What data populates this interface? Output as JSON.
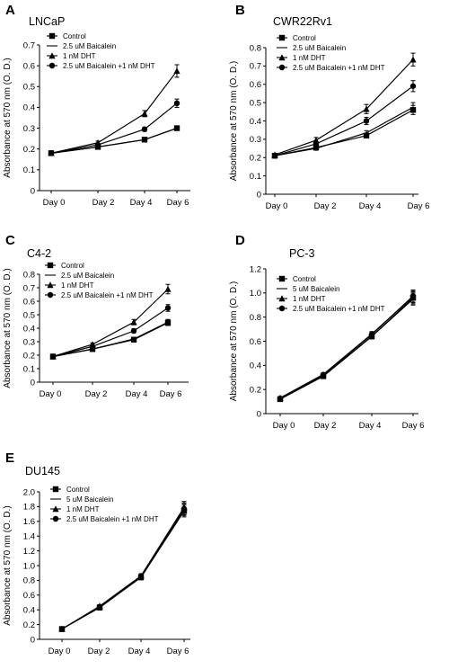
{
  "chart_data": [
    {
      "type": "line",
      "panel": "A",
      "title": "LNCaP",
      "ylabel": "Absorbance at 570 nm (O. D.)",
      "categories": [
        "Day 0",
        "Day 2",
        "Day 4",
        "Day 6"
      ],
      "ylim": [
        0,
        0.7
      ],
      "ytick_step": 0.1,
      "ytick_decimals": 1,
      "grid": false,
      "legend_position": "top-left",
      "series": [
        {
          "name": "Control",
          "marker": "square",
          "values": [
            0.18,
            0.21,
            0.245,
            0.3
          ],
          "errors": [
            0.005,
            0.005,
            0.006,
            0.01
          ]
        },
        {
          "name": "2.5 uM Baicalein",
          "marker": "none",
          "values": [
            0.18,
            0.21,
            0.245,
            0.3
          ],
          "errors": [
            0.005,
            0.005,
            0.006,
            0.01
          ]
        },
        {
          "name": "1 nM DHT",
          "marker": "triangle",
          "values": [
            0.18,
            0.23,
            0.37,
            0.575
          ],
          "errors": [
            0.005,
            0.008,
            0.015,
            0.03
          ]
        },
        {
          "name": "2.5 uM Baicalein +1 nM DHT",
          "marker": "circle",
          "values": [
            0.18,
            0.22,
            0.295,
            0.42
          ],
          "errors": [
            0.005,
            0.007,
            0.01,
            0.02
          ]
        }
      ]
    },
    {
      "type": "line",
      "panel": "B",
      "title": "CWR22Rv1",
      "ylabel": "Absorbance at 570 nm (O. D.)",
      "categories": [
        "Day 0",
        "Day 2",
        "Day 4",
        "Day 6"
      ],
      "ylim": [
        0,
        0.8
      ],
      "ytick_step": 0.1,
      "ytick_decimals": 1,
      "grid": false,
      "legend_position": "top-left",
      "series": [
        {
          "name": "Control",
          "marker": "square",
          "values": [
            0.21,
            0.255,
            0.32,
            0.46
          ],
          "errors": [
            0.008,
            0.01,
            0.012,
            0.025
          ]
        },
        {
          "name": "2.5 uM Baicalein",
          "marker": "none",
          "values": [
            0.21,
            0.25,
            0.335,
            0.475
          ],
          "errors": [
            0.008,
            0.01,
            0.012,
            0.025
          ]
        },
        {
          "name": "1 nM DHT",
          "marker": "triangle",
          "values": [
            0.215,
            0.295,
            0.465,
            0.735
          ],
          "errors": [
            0.008,
            0.015,
            0.025,
            0.035
          ]
        },
        {
          "name": "2.5 uM Baicalein +1 nM DHT",
          "marker": "circle",
          "values": [
            0.21,
            0.275,
            0.4,
            0.59
          ],
          "errors": [
            0.008,
            0.012,
            0.02,
            0.03
          ]
        }
      ]
    },
    {
      "type": "line",
      "panel": "C",
      "title": "C4-2",
      "ylabel": "Absorbance at 570 nm (O. D.)",
      "categories": [
        "Day 0",
        "Day 2",
        "Day 4",
        "Day 6"
      ],
      "ylim": [
        0,
        0.8
      ],
      "ytick_step": 0.1,
      "ytick_decimals": 1,
      "grid": false,
      "legend_position": "top-left",
      "series": [
        {
          "name": "Control",
          "marker": "square",
          "values": [
            0.19,
            0.245,
            0.315,
            0.44
          ],
          "errors": [
            0.005,
            0.008,
            0.012,
            0.02
          ]
        },
        {
          "name": "2.5 uM Baicalein",
          "marker": "none",
          "values": [
            0.19,
            0.245,
            0.32,
            0.445
          ],
          "errors": [
            0.005,
            0.008,
            0.012,
            0.02
          ]
        },
        {
          "name": "1 nM DHT",
          "marker": "triangle",
          "values": [
            0.19,
            0.28,
            0.445,
            0.69
          ],
          "errors": [
            0.005,
            0.01,
            0.02,
            0.035
          ]
        },
        {
          "name": "2.5 uM Baicalein +1 nM DHT",
          "marker": "circle",
          "values": [
            0.19,
            0.265,
            0.38,
            0.55
          ],
          "errors": [
            0.005,
            0.01,
            0.015,
            0.025
          ]
        }
      ]
    },
    {
      "type": "line",
      "panel": "D",
      "title": "PC-3",
      "ylabel": "Absorbance at 570 nm (O. D.)",
      "categories": [
        "Day 0",
        "Day 2",
        "Day 4",
        "Day 6"
      ],
      "ylim": [
        0,
        1.2
      ],
      "ytick_step": 0.2,
      "ytick_decimals": 1,
      "grid": false,
      "legend_position": "top-left",
      "series": [
        {
          "name": "Control",
          "marker": "square",
          "values": [
            0.12,
            0.31,
            0.64,
            0.96
          ],
          "errors": [
            0.01,
            0.015,
            0.02,
            0.05
          ]
        },
        {
          "name": "5 uM Baicalein",
          "marker": "none",
          "values": [
            0.12,
            0.31,
            0.64,
            0.95
          ],
          "errors": [
            0.01,
            0.015,
            0.02,
            0.05
          ]
        },
        {
          "name": "1 nM DHT",
          "marker": "triangle",
          "values": [
            0.13,
            0.325,
            0.66,
            0.97
          ],
          "errors": [
            0.01,
            0.015,
            0.02,
            0.05
          ]
        },
        {
          "name": "2.5 uM Baicalein +1 nM DHT",
          "marker": "circle",
          "values": [
            0.125,
            0.32,
            0.655,
            0.975
          ],
          "errors": [
            0.01,
            0.015,
            0.02,
            0.05
          ]
        }
      ]
    },
    {
      "type": "line",
      "panel": "E",
      "title": "DU145",
      "ylabel": "Absorbance at 570 nm (O. D.)",
      "categories": [
        "Day 0",
        "Day 2",
        "Day 4",
        "Day 6"
      ],
      "ylim": [
        0,
        2.0
      ],
      "ytick_step": 0.2,
      "ytick_decimals": 1,
      "grid": false,
      "legend_position": "top-left",
      "series": [
        {
          "name": "Control",
          "marker": "square",
          "values": [
            0.14,
            0.43,
            0.84,
            1.74
          ],
          "errors": [
            0.01,
            0.02,
            0.03,
            0.08
          ]
        },
        {
          "name": "5 uM Baicalein",
          "marker": "none",
          "values": [
            0.14,
            0.44,
            0.85,
            1.76
          ],
          "errors": [
            0.01,
            0.02,
            0.03,
            0.08
          ]
        },
        {
          "name": "1 nM DHT",
          "marker": "triangle",
          "values": [
            0.14,
            0.45,
            0.86,
            1.79
          ],
          "errors": [
            0.01,
            0.02,
            0.03,
            0.08
          ]
        },
        {
          "name": "2.5 uM Baicalein +1 nM DHT",
          "marker": "circle",
          "values": [
            0.14,
            0.44,
            0.84,
            1.77
          ],
          "errors": [
            0.01,
            0.02,
            0.03,
            0.08
          ]
        }
      ]
    }
  ]
}
